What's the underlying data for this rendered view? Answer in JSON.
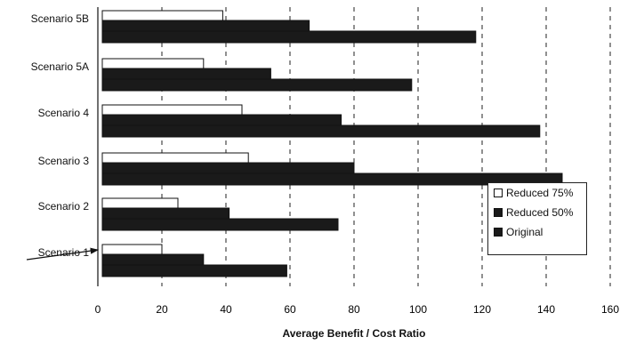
{
  "chart_data": {
    "type": "bar",
    "orientation": "horizontal",
    "categories": [
      "Scenario 5B",
      "Scenario 5A",
      "Scenario 4",
      "Scenario 3",
      "Scenario 2",
      "Scenario 1"
    ],
    "series": [
      {
        "name": "Reduced 75%",
        "color": "#ffffff",
        "values": [
          39,
          33,
          45,
          47,
          25,
          20
        ]
      },
      {
        "name": "Reduced 50%",
        "color": "#1a1a1a",
        "values": [
          66,
          54,
          76,
          80,
          41,
          33
        ]
      },
      {
        "name": "Original",
        "color": "#1a1a1a",
        "values": [
          118,
          98,
          138,
          145,
          75,
          59
        ]
      }
    ],
    "xlabel": "Average Benefit / Cost Ratio",
    "ylabel": "",
    "xlim": [
      0,
      160
    ],
    "xticks": [
      0,
      20,
      40,
      60,
      80,
      100,
      120,
      140,
      160
    ],
    "grid": "vertical dashed",
    "legend_position": "lower-right",
    "annotation": "arrow pointing to Scenario 1"
  }
}
